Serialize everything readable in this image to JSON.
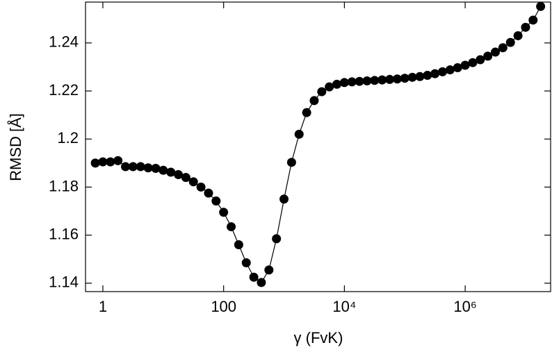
{
  "chart_data": {
    "type": "line",
    "xlabel": "γ (FvK)",
    "ylabel": "RMSD  [Å]",
    "color": "#000000",
    "log_x": true,
    "markers": true,
    "x": [
      0.75,
      1,
      1.334,
      1.778,
      2.371,
      3.162,
      4.217,
      5.623,
      7.499,
      10,
      13.34,
      17.78,
      23.71,
      31.62,
      42.17,
      56.23,
      74.99,
      100,
      133.4,
      177.8,
      237.1,
      316.2,
      421.7,
      562.3,
      749.9,
      1000,
      1334,
      1778,
      2371,
      3162,
      4217,
      5623,
      7499,
      10000,
      13340,
      17780,
      23710,
      31620,
      42170,
      56230,
      74990,
      100000,
      133400,
      177800,
      237100,
      316200,
      421700,
      562300,
      749900,
      1000000,
      1334000,
      1778000,
      2371000,
      3162000,
      4217000,
      5623000,
      7499000,
      10000000,
      13340000,
      17780000
    ],
    "values": [
      1.19,
      1.1905,
      1.1905,
      1.191,
      1.1885,
      1.1885,
      1.1885,
      1.188,
      1.1878,
      1.187,
      1.1862,
      1.1852,
      1.184,
      1.1822,
      1.18,
      1.1775,
      1.1742,
      1.1695,
      1.1635,
      1.156,
      1.1485,
      1.1425,
      1.1403,
      1.1455,
      1.1585,
      1.175,
      1.1903,
      1.202,
      1.211,
      1.216,
      1.2197,
      1.2217,
      1.2228,
      1.2235,
      1.2238,
      1.224,
      1.2242,
      1.2244,
      1.2246,
      1.2248,
      1.225,
      1.2253,
      1.2257,
      1.226,
      1.2265,
      1.2272,
      1.228,
      1.2288,
      1.2297,
      1.2307,
      1.2318,
      1.233,
      1.2345,
      1.2362,
      1.238,
      1.2402,
      1.243,
      1.2465,
      1.2495,
      1.2552
    ],
    "xlim": [
      0.516,
      26000000
    ],
    "xticks": [
      1,
      100,
      {
        "value": 10000,
        "label": "10⁴"
      },
      {
        "value": 1000000,
        "label": "10⁶"
      }
    ],
    "ylim": [
      1.1365,
      1.257
    ],
    "yticks": [
      1.14,
      1.16,
      1.18,
      1.2,
      1.22,
      1.24
    ]
  }
}
